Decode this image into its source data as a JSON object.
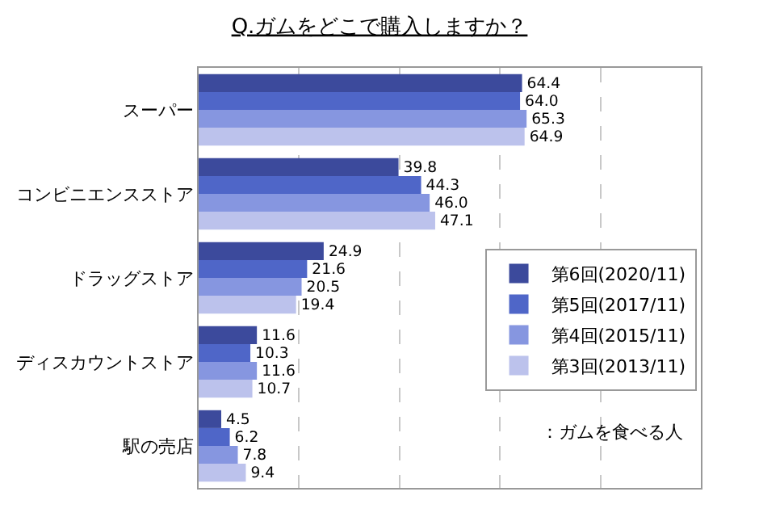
{
  "chart_data": {
    "type": "bar",
    "orientation": "horizontal",
    "title": "Q.ガムをどこで購入しますか？",
    "categories": [
      "スーパー",
      "コンビニエンスストア",
      "ドラッグストア",
      "ディスカウントストア",
      "駅の売店"
    ],
    "series": [
      {
        "name": "第6回(2020/11)",
        "color": "#3c4a9c",
        "values": [
          64.4,
          39.8,
          24.9,
          11.6,
          4.5
        ],
        "value_labels": [
          "64.4",
          "39.8",
          "24.9",
          "11.6",
          "4.5"
        ]
      },
      {
        "name": "第5回(2017/11)",
        "color": "#4f66c8",
        "values": [
          64.0,
          44.3,
          21.6,
          10.3,
          6.2
        ],
        "value_labels": [
          "64.0",
          "44.3",
          "21.6",
          "10.3",
          "6.2"
        ]
      },
      {
        "name": "第4回(2015/11)",
        "color": "#8696e0",
        "values": [
          65.3,
          46.0,
          20.5,
          11.6,
          7.8
        ],
        "value_labels": [
          "65.3",
          "46.0",
          "20.5",
          "11.6",
          "7.8"
        ]
      },
      {
        "name": "第3回(2013/11)",
        "color": "#bcc2ec",
        "values": [
          64.9,
          47.1,
          19.4,
          10.7,
          9.4
        ],
        "value_labels": [
          "64.9",
          "47.1",
          "19.4",
          "10.7",
          "9.4"
        ]
      }
    ],
    "xlim": [
      0,
      100
    ],
    "xticks": [
      {
        "value": 20,
        "label": null
      },
      {
        "value": 40,
        "label": null
      },
      {
        "value": 60,
        "label": null
      },
      {
        "value": 80,
        "label": null
      }
    ],
    "tick_labels": "y",
    "grid": "x",
    "legend": "right",
    "annotations": [
      "：ガムを食べる人"
    ]
  }
}
